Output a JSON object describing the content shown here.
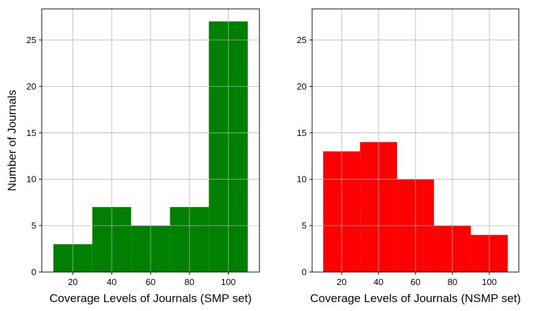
{
  "chart_data": [
    {
      "type": "bar",
      "title": "",
      "xlabel": "Coverage Levels of Journals (SMP set)",
      "ylabel": "Number of Journals",
      "xlim": [
        4,
        116
      ],
      "ylim": [
        0,
        28.35
      ],
      "xticks": [
        20,
        40,
        60,
        80,
        100
      ],
      "yticks": [
        0,
        5,
        10,
        15,
        20,
        25
      ],
      "grid": true,
      "color": "#008000",
      "bins": [
        {
          "start": 10,
          "end": 30,
          "value": 3
        },
        {
          "start": 30,
          "end": 50,
          "value": 7
        },
        {
          "start": 50,
          "end": 70,
          "value": 5
        },
        {
          "start": 70,
          "end": 90,
          "value": 7
        },
        {
          "start": 90,
          "end": 110,
          "value": 27
        }
      ]
    },
    {
      "type": "bar",
      "title": "",
      "xlabel": "Coverage Levels of Journals (NSMP set)",
      "ylabel": "",
      "xlim": [
        4,
        116
      ],
      "ylim": [
        0,
        28.35
      ],
      "xticks": [
        20,
        40,
        60,
        80,
        100
      ],
      "yticks": [
        0,
        5,
        10,
        15,
        20,
        25
      ],
      "grid": true,
      "color": "#ff0000",
      "bins": [
        {
          "start": 10,
          "end": 30,
          "value": 13
        },
        {
          "start": 30,
          "end": 50,
          "value": 14
        },
        {
          "start": 50,
          "end": 70,
          "value": 10
        },
        {
          "start": 70,
          "end": 90,
          "value": 5
        },
        {
          "start": 90,
          "end": 110,
          "value": 4
        }
      ]
    }
  ]
}
